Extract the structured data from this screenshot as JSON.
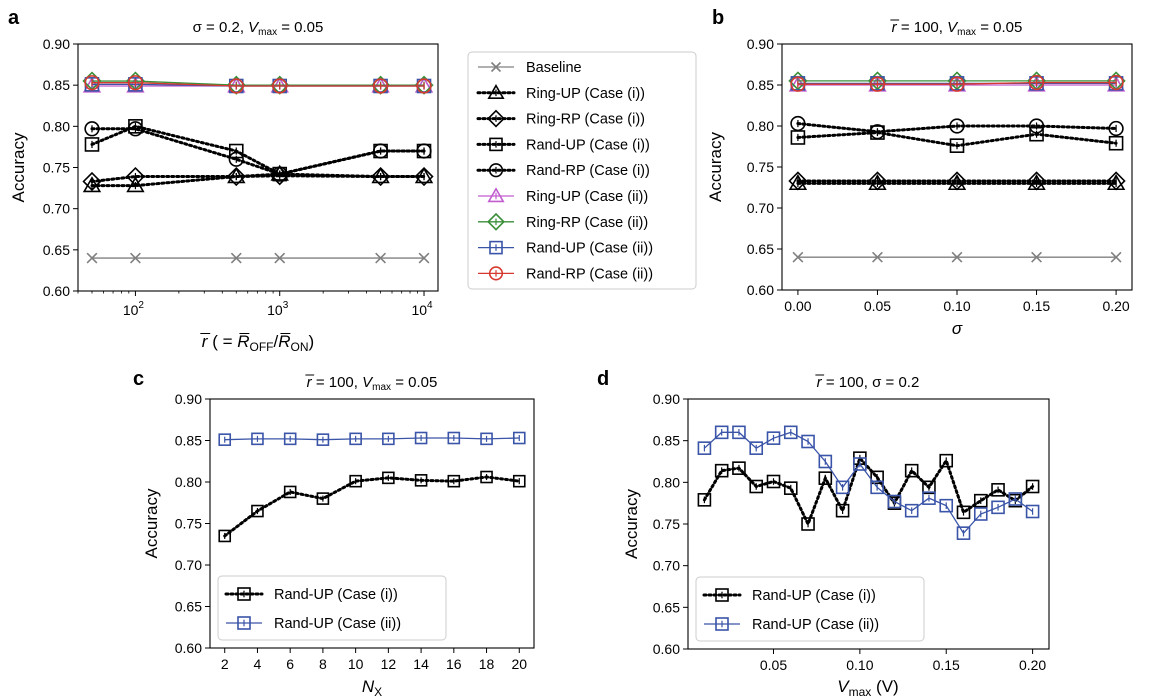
{
  "figure": {
    "background": "#ffffff"
  },
  "styles": {
    "black": "#000000",
    "gray": "#808080",
    "purple": "#c15ccf",
    "green": "#3a8f3a",
    "blue": "#3a54a8",
    "red": "#d63a2e"
  },
  "chart_data": [
    {
      "id": "a",
      "panel_label": "a",
      "type": "line",
      "title": "σ = 0.2, V_max = 0.05",
      "title_parts": [
        "σ = 0.2, ",
        "V",
        "max",
        " = 0.05"
      ],
      "xlabel_parts": [
        "r̅",
        " ( = ",
        "R̅",
        "OFF",
        "/",
        "R̅",
        "ON",
        ")"
      ],
      "ylabel": "Accuracy",
      "xscale": "log",
      "xlim": [
        40,
        12500
      ],
      "ylim": [
        0.6,
        0.9
      ],
      "xticks": [
        {
          "value": 100,
          "base": "10",
          "exp": "2"
        },
        {
          "value": 1000,
          "base": "10",
          "exp": "3"
        },
        {
          "value": 10000,
          "base": "10",
          "exp": "4"
        }
      ],
      "yticks": [
        "0.60",
        "0.65",
        "0.70",
        "0.75",
        "0.80",
        "0.85",
        "0.90"
      ],
      "x": [
        50,
        100,
        500,
        1000,
        5000,
        10000
      ],
      "series": [
        {
          "name": "Baseline",
          "marker": "x",
          "color": "gray",
          "linestyle": "solid",
          "values": [
            0.64,
            0.64,
            0.64,
            0.64,
            0.64,
            0.64
          ]
        },
        {
          "name": "Ring-UP (Case (i))",
          "marker": "triangle",
          "color": "black",
          "linestyle": "dotted",
          "values": [
            0.728,
            0.728,
            0.739,
            0.742,
            0.739,
            0.739
          ]
        },
        {
          "name": "Ring-RP (Case (i))",
          "marker": "diamond",
          "color": "black",
          "linestyle": "dotted",
          "values": [
            0.733,
            0.739,
            0.739,
            0.74,
            0.739,
            0.739
          ]
        },
        {
          "name": "Rand-UP (Case (i))",
          "marker": "square",
          "color": "black",
          "linestyle": "dotted",
          "values": [
            0.778,
            0.8,
            0.77,
            0.742,
            0.77,
            0.77
          ]
        },
        {
          "name": "Rand-RP (Case (i))",
          "marker": "circle",
          "color": "black",
          "linestyle": "dotted",
          "values": [
            0.797,
            0.797,
            0.76,
            0.742,
            0.77,
            0.77
          ]
        },
        {
          "name": "Ring-UP (Case (ii))",
          "marker": "triangle",
          "color": "purple",
          "linestyle": "solid",
          "values": [
            0.849,
            0.849,
            0.849,
            0.849,
            0.849,
            0.849
          ]
        },
        {
          "name": "Ring-RP (Case (ii))",
          "marker": "diamond",
          "color": "green",
          "linestyle": "solid",
          "values": [
            0.855,
            0.855,
            0.85,
            0.85,
            0.85,
            0.85
          ]
        },
        {
          "name": "Rand-UP (Case (ii))",
          "marker": "square",
          "color": "blue",
          "linestyle": "solid",
          "values": [
            0.851,
            0.851,
            0.849,
            0.849,
            0.849,
            0.849
          ]
        },
        {
          "name": "Rand-RP (Case (ii))",
          "marker": "circle",
          "color": "red",
          "linestyle": "solid",
          "values": [
            0.853,
            0.853,
            0.849,
            0.849,
            0.849,
            0.849
          ]
        }
      ]
    },
    {
      "id": "b",
      "panel_label": "b",
      "type": "line",
      "title": "r̅ = 100, V_max = 0.05",
      "title_parts": [
        "r̅",
        " = 100, ",
        "V",
        "max",
        " = 0.05"
      ],
      "xlabel": "σ",
      "ylabel": "Accuracy",
      "xscale": "linear",
      "xlim": [
        -0.01,
        0.21
      ],
      "ylim": [
        0.6,
        0.9
      ],
      "xticks": [
        "0.00",
        "0.05",
        "0.10",
        "0.15",
        "0.20"
      ],
      "yticks": [
        "0.60",
        "0.65",
        "0.70",
        "0.75",
        "0.80",
        "0.85",
        "0.90"
      ],
      "x": [
        0,
        0.05,
        0.1,
        0.15,
        0.2
      ],
      "series": [
        {
          "name": "Baseline",
          "marker": "x",
          "color": "gray",
          "linestyle": "solid",
          "values": [
            0.64,
            0.64,
            0.64,
            0.64,
            0.64
          ]
        },
        {
          "name": "Ring-UP (Case (i))",
          "marker": "triangle",
          "color": "black",
          "linestyle": "dotted",
          "values": [
            0.73,
            0.73,
            0.73,
            0.73,
            0.73
          ]
        },
        {
          "name": "Ring-RP (Case (i))",
          "marker": "diamond",
          "color": "black",
          "linestyle": "dotted",
          "values": [
            0.733,
            0.733,
            0.733,
            0.733,
            0.733
          ]
        },
        {
          "name": "Rand-UP (Case (i))",
          "marker": "square",
          "color": "black",
          "linestyle": "dotted",
          "values": [
            0.786,
            0.792,
            0.776,
            0.79,
            0.779
          ]
        },
        {
          "name": "Rand-RP (Case (i))",
          "marker": "circle",
          "color": "black",
          "linestyle": "dotted",
          "values": [
            0.803,
            0.793,
            0.8,
            0.8,
            0.797
          ]
        },
        {
          "name": "Ring-UP (Case (ii))",
          "marker": "triangle",
          "color": "purple",
          "linestyle": "solid",
          "values": [
            0.85,
            0.85,
            0.85,
            0.85,
            0.85
          ]
        },
        {
          "name": "Ring-RP (Case (ii))",
          "marker": "diamond",
          "color": "green",
          "linestyle": "solid",
          "values": [
            0.855,
            0.855,
            0.855,
            0.855,
            0.855
          ]
        },
        {
          "name": "Rand-UP (Case (ii))",
          "marker": "square",
          "color": "blue",
          "linestyle": "solid",
          "values": [
            0.852,
            0.852,
            0.852,
            0.852,
            0.852
          ]
        },
        {
          "name": "Rand-RP (Case (ii))",
          "marker": "circle",
          "color": "red",
          "linestyle": "solid",
          "values": [
            0.851,
            0.851,
            0.851,
            0.853,
            0.853
          ]
        }
      ]
    },
    {
      "id": "c",
      "panel_label": "c",
      "type": "line",
      "title": "r̅ = 100, V_max = 0.05",
      "title_parts": [
        "r̅",
        " = 100, ",
        "V",
        "max",
        " = 0.05"
      ],
      "xlabel_parts": [
        "N",
        "X"
      ],
      "ylabel": "Accuracy",
      "xscale": "linear",
      "xlim": [
        1.1,
        20.9
      ],
      "ylim": [
        0.6,
        0.9
      ],
      "xticks": [
        "2",
        "4",
        "6",
        "8",
        "10",
        "12",
        "14",
        "16",
        "18",
        "20"
      ],
      "yticks": [
        "0.60",
        "0.65",
        "0.70",
        "0.75",
        "0.80",
        "0.85",
        "0.90"
      ],
      "x": [
        2,
        4,
        6,
        8,
        10,
        12,
        14,
        16,
        18,
        20
      ],
      "legend": "lower-left",
      "series": [
        {
          "name": "Rand-UP (Case (i))",
          "marker": "square",
          "color": "black",
          "linestyle": "dotted",
          "values": [
            0.735,
            0.765,
            0.788,
            0.78,
            0.801,
            0.805,
            0.802,
            0.801,
            0.806,
            0.801
          ]
        },
        {
          "name": "Rand-UP (Case (ii))",
          "marker": "square",
          "color": "blue",
          "linestyle": "solid",
          "values": [
            0.851,
            0.852,
            0.852,
            0.851,
            0.852,
            0.852,
            0.853,
            0.853,
            0.852,
            0.853
          ]
        }
      ]
    },
    {
      "id": "d",
      "panel_label": "d",
      "type": "line",
      "title": "r̅ = 100, σ = 0.2",
      "title_parts": [
        "r̅",
        " = 100, σ = 0.2"
      ],
      "xlabel_parts": [
        "V",
        "max",
        " (V)"
      ],
      "ylabel": "Accuracy",
      "xscale": "linear",
      "xlim": [
        0.0005,
        0.2095
      ],
      "ylim": [
        0.6,
        0.9
      ],
      "xticks": [
        "0.05",
        "0.10",
        "0.15",
        "0.20"
      ],
      "yticks": [
        "0.60",
        "0.65",
        "0.70",
        "0.75",
        "0.80",
        "0.85",
        "0.90"
      ],
      "x": [
        0.01,
        0.02,
        0.03,
        0.04,
        0.05,
        0.06,
        0.07,
        0.08,
        0.09,
        0.1,
        0.11,
        0.12,
        0.13,
        0.14,
        0.15,
        0.16,
        0.17,
        0.18,
        0.19,
        0.2
      ],
      "legend": "lower-left",
      "series": [
        {
          "name": "Rand-UP (Case (i))",
          "marker": "square",
          "color": "black",
          "linestyle": "dotted",
          "values": [
            0.779,
            0.814,
            0.817,
            0.795,
            0.801,
            0.793,
            0.75,
            0.805,
            0.766,
            0.829,
            0.806,
            0.775,
            0.814,
            0.794,
            0.826,
            0.764,
            0.778,
            0.791,
            0.778,
            0.795
          ]
        },
        {
          "name": "Rand-UP (Case (ii))",
          "marker": "square",
          "color": "blue",
          "linestyle": "solid",
          "values": [
            0.841,
            0.86,
            0.86,
            0.841,
            0.853,
            0.86,
            0.849,
            0.825,
            0.794,
            0.822,
            0.794,
            0.777,
            0.766,
            0.781,
            0.772,
            0.739,
            0.762,
            0.77,
            0.78,
            0.765
          ]
        }
      ]
    }
  ],
  "legend_a": {
    "placement": "right",
    "entries": [
      {
        "label": "Baseline",
        "marker": "x",
        "color": "gray",
        "linestyle": "solid"
      },
      {
        "label": "Ring-UP (Case (i))",
        "marker": "triangle",
        "color": "black",
        "linestyle": "dotted"
      },
      {
        "label": "Ring-RP (Case (i))",
        "marker": "diamond",
        "color": "black",
        "linestyle": "dotted"
      },
      {
        "label": "Rand-UP (Case (i))",
        "marker": "square",
        "color": "black",
        "linestyle": "dotted"
      },
      {
        "label": "Rand-RP (Case (i))",
        "marker": "circle",
        "color": "black",
        "linestyle": "dotted"
      },
      {
        "label": "Ring-UP (Case (ii))",
        "marker": "triangle",
        "color": "purple",
        "linestyle": "solid"
      },
      {
        "label": "Ring-RP (Case (ii))",
        "marker": "diamond",
        "color": "green",
        "linestyle": "solid"
      },
      {
        "label": "Rand-UP (Case (ii))",
        "marker": "square",
        "color": "blue",
        "linestyle": "solid"
      },
      {
        "label": "Rand-RP (Case (ii))",
        "marker": "circle",
        "color": "red",
        "linestyle": "solid"
      }
    ]
  }
}
